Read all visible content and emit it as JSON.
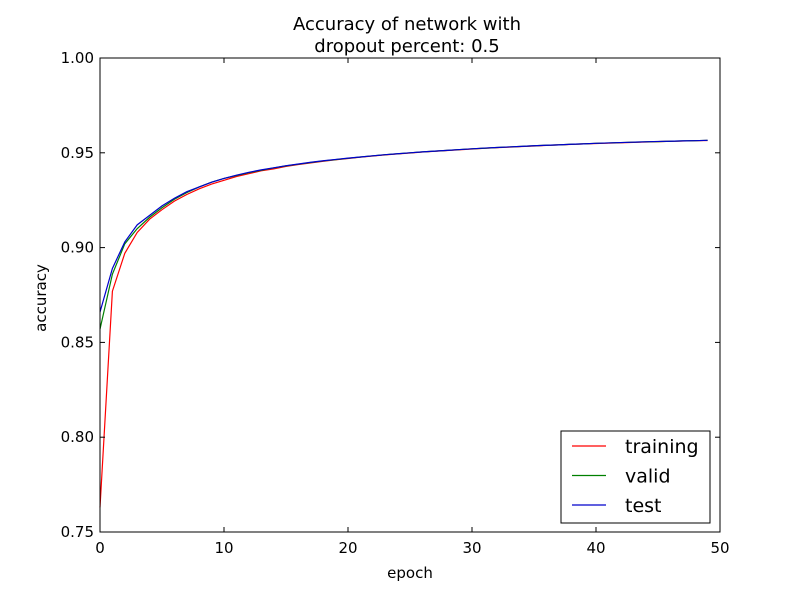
{
  "chart_data": {
    "type": "line",
    "title_lines": [
      "Accuracy of network with",
      "dropout percent: 0.5"
    ],
    "xlabel": "epoch",
    "ylabel": "accuracy",
    "xlim": [
      0,
      50
    ],
    "ylim": [
      0.75,
      1.0
    ],
    "x_ticks": [
      0,
      10,
      20,
      30,
      40,
      50
    ],
    "y_ticks": [
      0.75,
      0.8,
      0.85,
      0.9,
      0.95,
      1.0
    ],
    "x_tick_labels": [
      "0",
      "10",
      "20",
      "30",
      "40",
      "50"
    ],
    "y_tick_labels": [
      "0.75",
      "0.80",
      "0.85",
      "0.90",
      "0.95",
      "1.00"
    ],
    "grid": false,
    "legend_position": "lower-right",
    "x": [
      0,
      1,
      2,
      3,
      4,
      5,
      6,
      7,
      8,
      9,
      10,
      11,
      12,
      13,
      14,
      15,
      16,
      17,
      18,
      19,
      20,
      21,
      22,
      23,
      24,
      25,
      26,
      27,
      28,
      29,
      30,
      31,
      32,
      33,
      34,
      35,
      36,
      37,
      38,
      39,
      40,
      41,
      42,
      43,
      44,
      45,
      46,
      47,
      48,
      49
    ],
    "series": [
      {
        "name": "training",
        "color": "#ff0000",
        "values": [
          0.763,
          0.877,
          0.897,
          0.908,
          0.915,
          0.92,
          0.9245,
          0.928,
          0.931,
          0.9335,
          0.9355,
          0.9375,
          0.939,
          0.9405,
          0.9415,
          0.9428,
          0.9438,
          0.9447,
          0.9455,
          0.9463,
          0.947,
          0.9477,
          0.9483,
          0.9489,
          0.9494,
          0.9499,
          0.9504,
          0.9508,
          0.9512,
          0.9516,
          0.952,
          0.9524,
          0.9527,
          0.953,
          0.9533,
          0.9536,
          0.9539,
          0.9542,
          0.9544,
          0.9547,
          0.9549,
          0.9551,
          0.9553,
          0.9555,
          0.9557,
          0.9559,
          0.9561,
          0.9562,
          0.9564,
          0.9565
        ]
      },
      {
        "name": "valid",
        "color": "#008000",
        "values": [
          0.857,
          0.886,
          0.902,
          0.91,
          0.916,
          0.921,
          0.9255,
          0.929,
          0.932,
          0.9345,
          0.9365,
          0.938,
          0.9395,
          0.9408,
          0.942,
          0.9431,
          0.944,
          0.9449,
          0.9457,
          0.9464,
          0.9471,
          0.9478,
          0.9484,
          0.949,
          0.9495,
          0.95,
          0.9505,
          0.9509,
          0.9513,
          0.9517,
          0.9521,
          0.9524,
          0.9528,
          0.9531,
          0.9534,
          0.9537,
          0.954,
          0.9542,
          0.9545,
          0.9547,
          0.955,
          0.9552,
          0.9554,
          0.9556,
          0.9558,
          0.9559,
          0.9561,
          0.9563,
          0.9564,
          0.9566
        ]
      },
      {
        "name": "test",
        "color": "#0000cc",
        "values": [
          0.866,
          0.889,
          0.903,
          0.912,
          0.917,
          0.922,
          0.926,
          0.9295,
          0.932,
          0.9345,
          0.9365,
          0.9382,
          0.9397,
          0.941,
          0.9421,
          0.9432,
          0.9441,
          0.945,
          0.9458,
          0.9465,
          0.9472,
          0.9478,
          0.9484,
          0.949,
          0.9495,
          0.95,
          0.9505,
          0.9509,
          0.9513,
          0.9517,
          0.9521,
          0.9525,
          0.9528,
          0.9531,
          0.9534,
          0.9537,
          0.954,
          0.9542,
          0.9545,
          0.9547,
          0.955,
          0.9552,
          0.9554,
          0.9556,
          0.9558,
          0.956,
          0.9561,
          0.9563,
          0.9564,
          0.9566
        ]
      }
    ]
  }
}
